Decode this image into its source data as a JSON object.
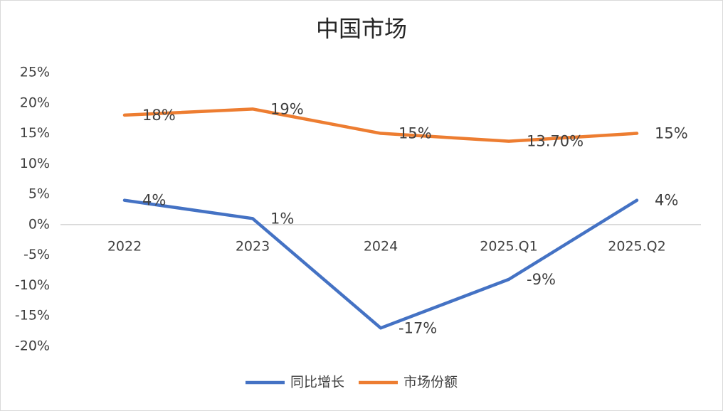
{
  "chart_data": {
    "type": "line",
    "title": "中国市场",
    "categories": [
      "2022",
      "2023",
      "2024",
      "2025.Q1",
      "2025.Q2"
    ],
    "series": [
      {
        "name": "同比增长",
        "color": "#4472c4",
        "values": [
          4,
          1,
          -17,
          -9,
          4
        ],
        "value_labels": [
          "4%",
          "1%",
          "-17%",
          "-9%",
          "4%"
        ]
      },
      {
        "name": "市场份额",
        "color": "#ed7d31",
        "values": [
          18,
          19,
          15,
          13.7,
          15
        ],
        "value_labels": [
          "18%",
          "19%",
          "15%",
          "13.70%",
          "15%"
        ]
      }
    ],
    "ylim": [
      -20,
      25
    ],
    "yticks": [
      {
        "value": -20,
        "label": "-20%"
      },
      {
        "value": -15,
        "label": "-15%"
      },
      {
        "value": -10,
        "label": "-10%"
      },
      {
        "value": -5,
        "label": "-5%"
      },
      {
        "value": 0,
        "label": "0%"
      },
      {
        "value": 5,
        "label": "5%"
      },
      {
        "value": 10,
        "label": "10%"
      },
      {
        "value": 15,
        "label": "15%"
      },
      {
        "value": 20,
        "label": "20%"
      },
      {
        "value": 25,
        "label": "25%"
      }
    ],
    "grid": false,
    "legend": "bottom"
  }
}
